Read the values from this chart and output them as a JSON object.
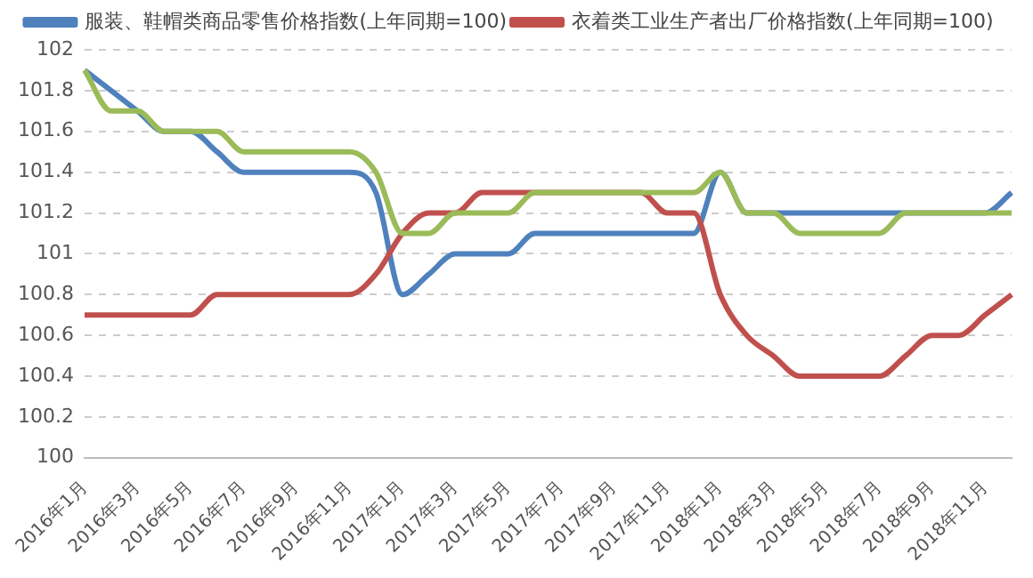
{
  "chart_data": {
    "type": "line",
    "categories": [
      "2016年1月",
      null,
      "2016年3月",
      null,
      "2016年5月",
      null,
      "2016年7月",
      null,
      "2016年9月",
      null,
      "2016年11月",
      null,
      "2017年1月",
      null,
      "2017年3月",
      null,
      "2017年5月",
      null,
      "2017年7月",
      null,
      "2017年9月",
      null,
      "2017年11月",
      null,
      "2018年1月",
      null,
      "2018年3月",
      null,
      "2018年5月",
      null,
      "2018年7月",
      null,
      "2018年9月",
      null,
      "2018年11月",
      null
    ],
    "series": [
      {
        "name": "服装、鞋帽类商品零售价格指数(上年同期=100)",
        "color": "#4f81bd",
        "values": [
          101.9,
          101.8,
          101.7,
          101.6,
          101.6,
          101.5,
          101.4,
          101.4,
          101.4,
          101.4,
          101.4,
          101.3,
          100.8,
          100.9,
          101.0,
          101.0,
          101.0,
          101.1,
          101.1,
          101.1,
          101.1,
          101.1,
          101.1,
          101.1,
          101.4,
          101.2,
          101.2,
          101.2,
          101.2,
          101.2,
          101.2,
          101.2,
          101.2,
          101.2,
          101.2,
          101.3
        ]
      },
      {
        "name": "衣着类工业生产者出厂价格指数(上年同期=100)",
        "color": "#c0504d",
        "values": [
          100.7,
          100.7,
          100.7,
          100.7,
          100.7,
          100.8,
          100.8,
          100.8,
          100.8,
          100.8,
          100.8,
          100.9,
          101.1,
          101.2,
          101.2,
          101.3,
          101.3,
          101.3,
          101.3,
          101.3,
          101.3,
          101.3,
          101.2,
          101.2,
          100.8,
          100.6,
          100.5,
          100.4,
          100.4,
          100.4,
          100.4,
          100.5,
          100.6,
          100.6,
          100.7,
          100.8
        ]
      },
      {
        "color": "#9bbb59",
        "values": [
          101.9,
          101.7,
          101.7,
          101.6,
          101.6,
          101.6,
          101.5,
          101.5,
          101.5,
          101.5,
          101.5,
          101.4,
          101.1,
          101.1,
          101.2,
          101.2,
          101.2,
          101.3,
          101.3,
          101.3,
          101.3,
          101.3,
          101.3,
          101.3,
          101.4,
          101.2,
          101.2,
          101.1,
          101.1,
          101.1,
          101.1,
          101.2,
          101.2,
          101.2,
          101.2,
          101.2
        ]
      }
    ],
    "ylim": [
      100,
      102
    ],
    "yticks": [
      100,
      100.2,
      100.4,
      100.6,
      100.8,
      101,
      101.2,
      101.4,
      101.6,
      101.8,
      102
    ],
    "grid": "y",
    "legend": "top",
    "marker": "none",
    "line_style": "solid"
  }
}
